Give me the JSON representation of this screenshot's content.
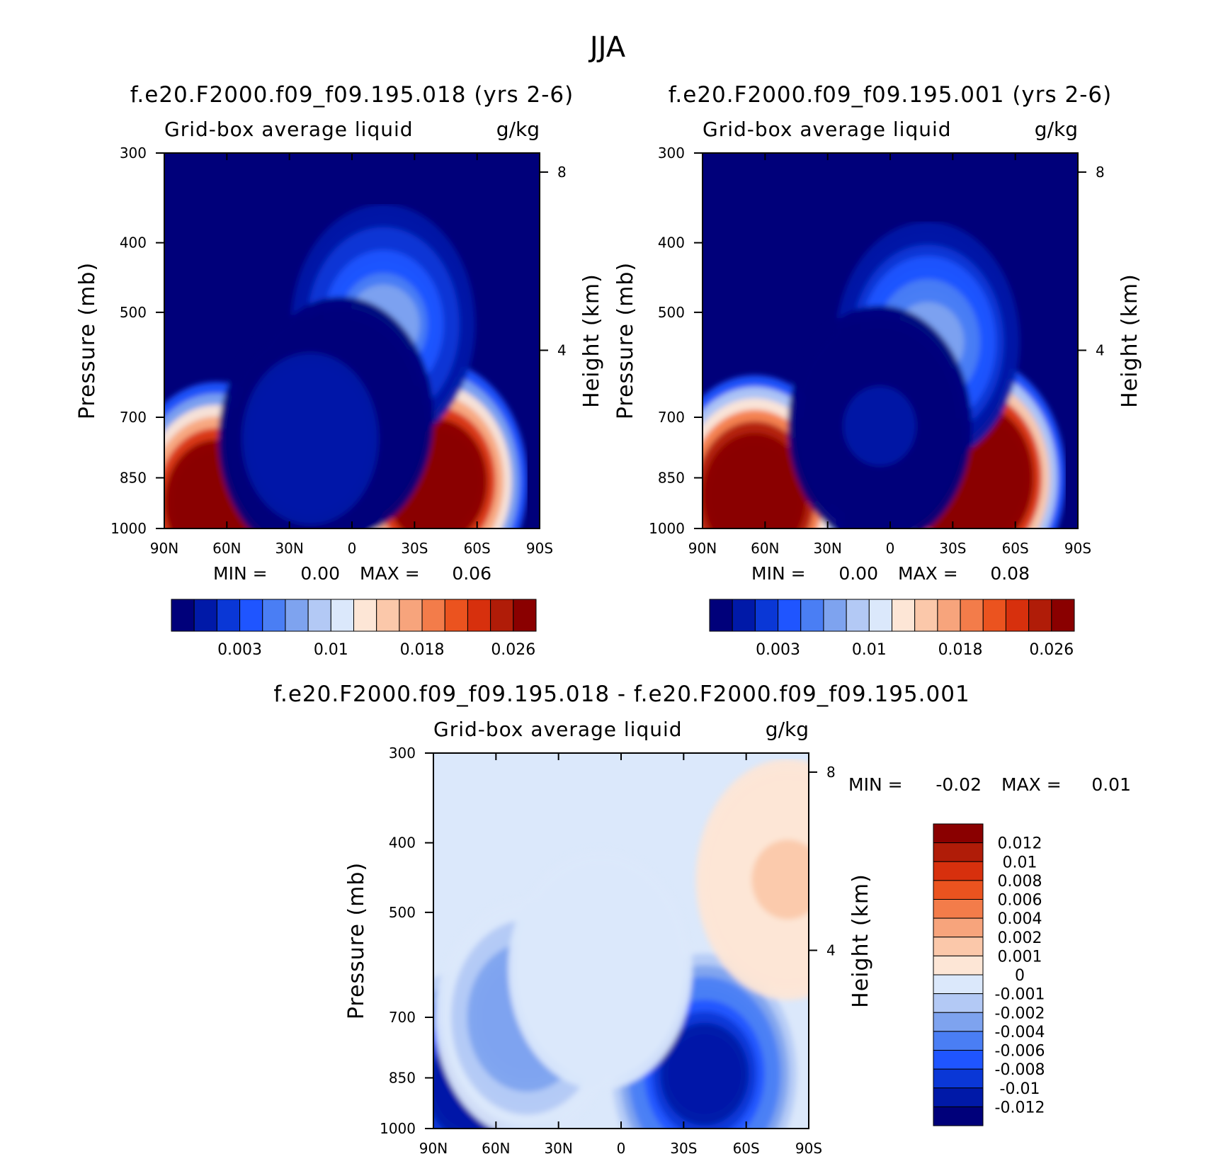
{
  "figure": {
    "title": "JJA"
  },
  "panels": [
    {
      "title": "f.e20.F2000.f09_f09.195.018 (yrs 2-6)",
      "subtitle_left": "Grid-box average liquid",
      "subtitle_right": "g/kg",
      "ylabel": "Pressure (mb)",
      "ylabel_right": "Height (km)",
      "min_label": "MIN =",
      "min_value": "0.00",
      "max_label": "MAX =",
      "max_value": "0.06",
      "colorbar_labels": [
        "0.003",
        "0.01",
        "0.018",
        "0.026"
      ]
    },
    {
      "title": "f.e20.F2000.f09_f09.195.001 (yrs 2-6)",
      "subtitle_left": "Grid-box average liquid",
      "subtitle_right": "g/kg",
      "ylabel": "Pressure (mb)",
      "ylabel_right": "Height (km)",
      "min_label": "MIN =",
      "min_value": "0.00",
      "max_label": "MAX =",
      "max_value": "0.08",
      "colorbar_labels": [
        "0.003",
        "0.01",
        "0.018",
        "0.026"
      ]
    },
    {
      "title": "f.e20.F2000.f09_f09.195.018 - f.e20.F2000.f09_f09.195.001",
      "subtitle_left": "Grid-box average liquid",
      "subtitle_right": "g/kg",
      "ylabel": "Pressure (mb)",
      "ylabel_right": "Height (km)",
      "min_label": "MIN =",
      "min_value": "-0.02",
      "max_label": "MAX =",
      "max_value": "0.01",
      "colorbar_labels": [
        "0.012",
        "0.01",
        "0.008",
        "0.006",
        "0.004",
        "0.002",
        "0.001",
        "0",
        "-0.001",
        "-0.002",
        "-0.004",
        "-0.006",
        "-0.008",
        "-0.01",
        "-0.012"
      ]
    }
  ],
  "chart_data": [
    {
      "type": "heatmap",
      "title": "f.e20.F2000.f09_f09.195.018 (yrs 2-6)",
      "xlabel": "",
      "ylabel": "Pressure (mb)",
      "ylabel_right": "Height (km)",
      "x_ticks": [
        "90N",
        "60N",
        "30N",
        "0",
        "30S",
        "60S",
        "90S"
      ],
      "x_range": [
        90,
        -90
      ],
      "y_ticks": [
        300,
        400,
        500,
        700,
        850,
        1000
      ],
      "y_range": [
        300,
        1000
      ],
      "y_scale": "log",
      "y_right_ticks": [
        8,
        4
      ],
      "min": 0.0,
      "max": 0.06,
      "colors": [
        "#00007a",
        "#0019a8",
        "#0a37d6",
        "#1f55ff",
        "#4a7ef4",
        "#7ea3ef",
        "#b3c9f5",
        "#dbe8fb",
        "#fde6d6",
        "#fbc8aa",
        "#f7a47c",
        "#f37c4a",
        "#eb531f",
        "#d7300d",
        "#b01c08",
        "#8a0000"
      ],
      "levels_labeled": [
        0.003,
        0.01,
        0.018,
        0.026
      ],
      "features": [
        {
          "lat": 65,
          "p": 920,
          "value": 0.04
        },
        {
          "lat": -40,
          "p": 860,
          "value": 0.04
        },
        {
          "lat": -15,
          "p": 520,
          "value": 0.009
        },
        {
          "lat": 5,
          "p": 700,
          "value": 0.001
        },
        {
          "lat": 20,
          "p": 750,
          "value": 0.002
        }
      ]
    },
    {
      "type": "heatmap",
      "title": "f.e20.F2000.f09_f09.195.001 (yrs 2-6)",
      "xlabel": "",
      "ylabel": "Pressure (mb)",
      "ylabel_right": "Height (km)",
      "x_ticks": [
        "90N",
        "60N",
        "30N",
        "0",
        "30S",
        "60S",
        "90S"
      ],
      "x_range": [
        90,
        -90
      ],
      "y_ticks": [
        300,
        400,
        500,
        700,
        850,
        1000
      ],
      "y_range": [
        300,
        1000
      ],
      "y_scale": "log",
      "y_right_ticks": [
        8,
        4
      ],
      "min": 0.0,
      "max": 0.08,
      "colors": [
        "#00007a",
        "#0019a8",
        "#0a37d6",
        "#1f55ff",
        "#4a7ef4",
        "#7ea3ef",
        "#b3c9f5",
        "#dbe8fb",
        "#fde6d6",
        "#fbc8aa",
        "#f7a47c",
        "#f37c4a",
        "#eb531f",
        "#d7300d",
        "#b01c08",
        "#8a0000"
      ],
      "levels_labeled": [
        0.003,
        0.01,
        0.018,
        0.026
      ],
      "features": [
        {
          "lat": 65,
          "p": 900,
          "value": 0.045
        },
        {
          "lat": -40,
          "p": 850,
          "value": 0.05
        },
        {
          "lat": -18,
          "p": 550,
          "value": 0.01
        },
        {
          "lat": 5,
          "p": 720,
          "value": 0.001
        }
      ]
    },
    {
      "type": "heatmap",
      "title": "f.e20.F2000.f09_f09.195.018 - f.e20.F2000.f09_f09.195.001",
      "xlabel": "",
      "ylabel": "Pressure (mb)",
      "ylabel_right": "Height (km)",
      "x_ticks": [
        "90N",
        "60N",
        "30N",
        "0",
        "30S",
        "60S",
        "90S"
      ],
      "x_range": [
        90,
        -90
      ],
      "y_ticks": [
        300,
        400,
        500,
        700,
        850,
        1000
      ],
      "y_range": [
        300,
        1000
      ],
      "y_scale": "log",
      "y_right_ticks": [
        8,
        4
      ],
      "min": -0.02,
      "max": 0.01,
      "colors": [
        "#00007a",
        "#0019a8",
        "#0a37d6",
        "#1f55ff",
        "#4a7ef4",
        "#7ea3ef",
        "#b3c9f5",
        "#dbe8fb",
        "#fde6d6",
        "#fbc8aa",
        "#f7a47c",
        "#f37c4a",
        "#eb531f",
        "#d7300d",
        "#b01c08",
        "#8a0000"
      ],
      "levels": [
        -0.012,
        -0.01,
        -0.008,
        -0.006,
        -0.004,
        -0.002,
        -0.001,
        0,
        0.001,
        0.002,
        0.004,
        0.006,
        0.008,
        0.01,
        0.012
      ],
      "features": [
        {
          "lat": 72,
          "p": 880,
          "value": -0.012
        },
        {
          "lat": -40,
          "p": 840,
          "value": -0.012
        },
        {
          "lat": 45,
          "p": 700,
          "value": -0.004
        },
        {
          "lat": 10,
          "p": 600,
          "value": -0.001
        },
        {
          "lat": -80,
          "p": 450,
          "value": 0.001
        }
      ]
    }
  ]
}
